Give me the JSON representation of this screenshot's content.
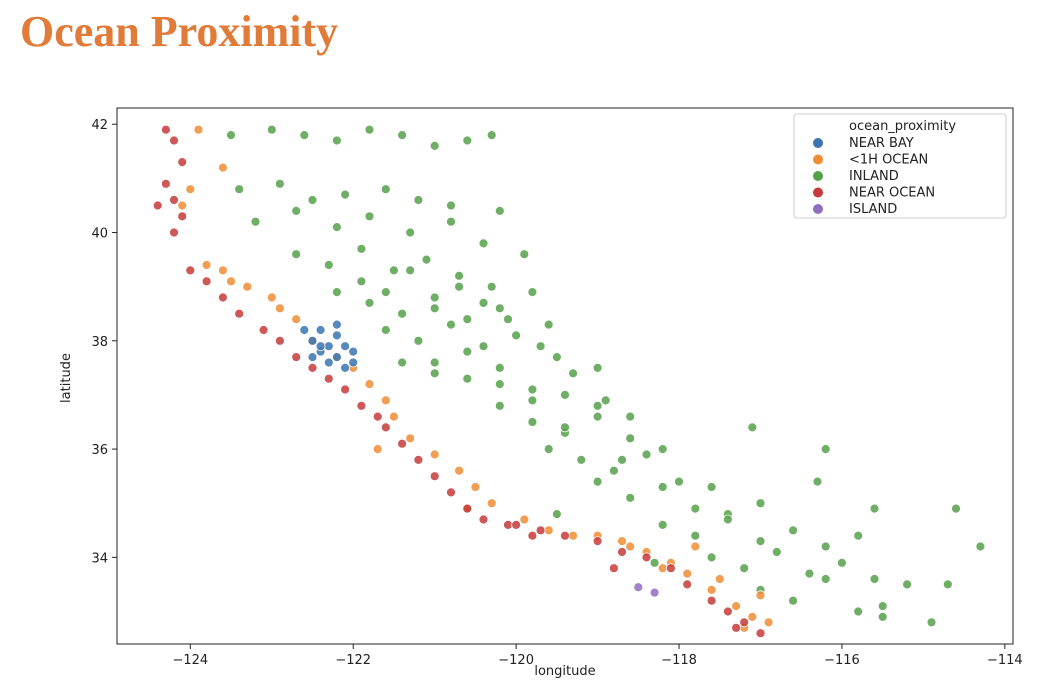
{
  "page": {
    "title": "Ocean Proximity"
  },
  "chart_data": {
    "type": "scatter",
    "title": "",
    "xlabel": "longitude",
    "ylabel": "latitude",
    "xlim": [
      -124.9,
      -113.9
    ],
    "ylim": [
      32.4,
      42.3
    ],
    "xticks": [
      -124,
      -122,
      -120,
      -118,
      -116,
      -114
    ],
    "xtick_labels": [
      "−124",
      "−122",
      "−120",
      "−118",
      "−116",
      "−114"
    ],
    "yticks": [
      34,
      36,
      38,
      40,
      42
    ],
    "ytick_labels": [
      "34",
      "36",
      "38",
      "40",
      "42"
    ],
    "grid": false,
    "legend": {
      "title": "ocean_proximity",
      "placement": "top-right"
    },
    "series": [
      {
        "name": "INLAND",
        "color": "#55a14a",
        "x": [
          -123.5,
          -123.0,
          -122.6,
          -122.2,
          -121.8,
          -121.4,
          -121.0,
          -120.6,
          -120.3,
          -123.4,
          -122.9,
          -122.5,
          -122.1,
          -121.6,
          -121.2,
          -120.8,
          -120.2,
          -123.2,
          -122.7,
          -122.2,
          -121.8,
          -121.3,
          -120.8,
          -120.4,
          -119.9,
          -122.7,
          -122.3,
          -121.9,
          -121.5,
          -121.1,
          -120.7,
          -120.3,
          -119.8,
          -122.2,
          -121.8,
          -121.4,
          -121.0,
          -120.6,
          -120.2,
          -119.6,
          -121.6,
          -121.2,
          -120.8,
          -120.4,
          -120.0,
          -119.5,
          -119.0,
          -121.0,
          -120.6,
          -120.2,
          -119.8,
          -119.4,
          -119.0,
          -118.6,
          -120.2,
          -119.8,
          -119.4,
          -119.0,
          -118.6,
          -118.2,
          -119.6,
          -119.2,
          -118.8,
          -118.4,
          -118.0,
          -117.6,
          -119.0,
          -118.6,
          -118.2,
          -117.8,
          -117.4,
          -117.0,
          -118.2,
          -117.8,
          -117.4,
          -117.0,
          -116.6,
          -116.2,
          -115.8,
          -117.6,
          -117.2,
          -116.8,
          -116.4,
          -116.0,
          -115.6,
          -115.2,
          -117.0,
          -116.6,
          -116.2,
          -115.8,
          -115.5,
          -114.6,
          -114.3,
          -114.7,
          -116.2,
          -115.6,
          -114.9,
          -121.9,
          -121.6,
          -121.3,
          -121.0,
          -120.7,
          -120.4,
          -120.1,
          -119.7,
          -119.3,
          -118.9,
          -121.4,
          -121.0,
          -120.6,
          -120.2,
          -119.8,
          -119.4,
          -117.1,
          -115.5,
          -116.3,
          -119.5,
          -118.7,
          -118.3
        ],
        "y": [
          41.8,
          41.9,
          41.8,
          41.7,
          41.9,
          41.8,
          41.6,
          41.7,
          41.8,
          40.8,
          40.9,
          40.6,
          40.7,
          40.8,
          40.6,
          40.5,
          40.4,
          40.2,
          40.4,
          40.1,
          40.3,
          40.0,
          40.2,
          39.8,
          39.6,
          39.6,
          39.4,
          39.7,
          39.3,
          39.5,
          39.2,
          39.0,
          38.9,
          38.9,
          38.7,
          38.5,
          38.8,
          38.4,
          38.6,
          38.3,
          38.2,
          38.0,
          38.3,
          37.9,
          38.1,
          37.7,
          37.5,
          37.6,
          37.3,
          37.5,
          37.1,
          37.0,
          36.8,
          36.6,
          36.8,
          36.5,
          36.3,
          36.6,
          36.2,
          36.0,
          36.0,
          35.8,
          35.6,
          35.9,
          35.4,
          35.3,
          35.4,
          35.1,
          35.3,
          34.9,
          34.8,
          35.0,
          34.6,
          34.4,
          34.7,
          34.3,
          34.5,
          34.2,
          34.4,
          34.0,
          33.8,
          34.1,
          33.7,
          33.9,
          33.6,
          33.5,
          33.4,
          33.2,
          33.6,
          33.0,
          32.9,
          34.9,
          34.2,
          33.5,
          36.0,
          34.9,
          32.8,
          39.1,
          38.9,
          39.3,
          38.6,
          39.0,
          38.7,
          38.4,
          37.9,
          37.4,
          36.9,
          37.6,
          37.4,
          37.8,
          37.2,
          36.9,
          36.4,
          36.4,
          33.1,
          35.4,
          34.8,
          35.8,
          33.9
        ]
      },
      {
        "name": "<1H OCEAN",
        "color": "#ef8c34",
        "x": [
          -123.9,
          -123.6,
          -124.0,
          -124.1,
          -123.8,
          -123.6,
          -123.3,
          -123.0,
          -122.7,
          -122.5,
          -122.2,
          -122.0,
          -121.8,
          -121.6,
          -121.5,
          -121.3,
          -121.0,
          -120.7,
          -120.5,
          -120.3,
          -119.9,
          -119.6,
          -119.3,
          -119.0,
          -118.7,
          -118.4,
          -118.1,
          -117.9,
          -117.6,
          -117.3,
          -117.1,
          -116.9,
          -117.2,
          -117.0,
          -118.2,
          -117.8,
          -117.5,
          -123.5,
          -122.9,
          -121.7,
          -120.6,
          -118.6
        ],
        "y": [
          41.9,
          41.2,
          40.8,
          40.5,
          39.4,
          39.3,
          39.0,
          38.8,
          38.4,
          38.0,
          37.7,
          37.5,
          37.2,
          36.9,
          36.6,
          36.2,
          35.9,
          35.6,
          35.3,
          35.0,
          34.7,
          34.5,
          34.4,
          34.4,
          34.3,
          34.1,
          33.9,
          33.7,
          33.4,
          33.1,
          32.9,
          32.8,
          32.7,
          33.3,
          33.8,
          34.2,
          33.6,
          39.1,
          38.6,
          36.0,
          34.9,
          34.2
        ]
      },
      {
        "name": "NEAR OCEAN",
        "color": "#c63a3a",
        "x": [
          -124.3,
          -124.2,
          -124.1,
          -124.3,
          -124.2,
          -124.1,
          -124.4,
          -124.2,
          -124.0,
          -123.8,
          -123.6,
          -123.4,
          -123.1,
          -122.9,
          -122.7,
          -122.5,
          -122.3,
          -122.1,
          -121.9,
          -121.6,
          -121.4,
          -121.2,
          -121.0,
          -120.8,
          -120.6,
          -120.4,
          -120.1,
          -119.8,
          -119.4,
          -119.0,
          -118.7,
          -118.4,
          -118.1,
          -117.9,
          -117.6,
          -117.4,
          -117.2,
          -117.0,
          -117.3,
          -121.7,
          -118.8,
          -119.7,
          -120.0
        ],
        "y": [
          41.9,
          41.7,
          41.3,
          40.9,
          40.6,
          40.3,
          40.5,
          40.0,
          39.3,
          39.1,
          38.8,
          38.5,
          38.2,
          38.0,
          37.7,
          37.5,
          37.3,
          37.1,
          36.8,
          36.4,
          36.1,
          35.8,
          35.5,
          35.2,
          34.9,
          34.7,
          34.6,
          34.4,
          34.4,
          34.3,
          34.1,
          34.0,
          33.8,
          33.5,
          33.2,
          33.0,
          32.8,
          32.6,
          32.7,
          36.6,
          33.8,
          34.5,
          34.6
        ]
      },
      {
        "name": "NEAR BAY",
        "color": "#3a75b0",
        "x": [
          -122.6,
          -122.4,
          -122.2,
          -122.5,
          -122.3,
          -122.1,
          -122.4,
          -122.2,
          -122.0,
          -122.3,
          -122.1,
          -122.5,
          -122.2,
          -122.0,
          -122.4
        ],
        "y": [
          38.2,
          38.2,
          38.1,
          38.0,
          37.9,
          37.9,
          37.8,
          37.7,
          37.8,
          37.6,
          37.5,
          37.7,
          38.3,
          37.6,
          37.9
        ]
      },
      {
        "name": "ISLAND",
        "color": "#8f6dbf",
        "x": [
          -118.5,
          -118.3
        ],
        "y": [
          33.45,
          33.35
        ]
      }
    ],
    "legend_order": [
      "NEAR BAY",
      "<1H OCEAN",
      "INLAND",
      "NEAR OCEAN",
      "ISLAND"
    ]
  }
}
